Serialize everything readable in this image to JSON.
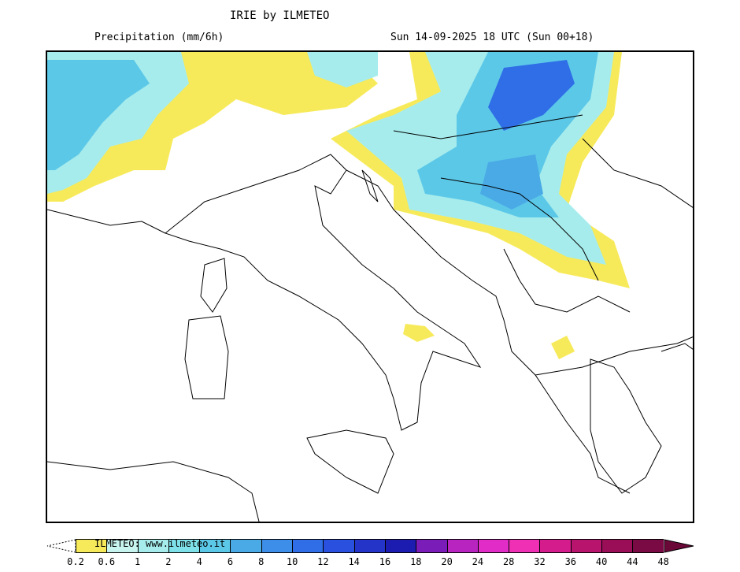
{
  "header": {
    "title": "IRIE by ILMETEO",
    "subtitle": "Precipitation (mm/6h)",
    "datetime": "Sun 14-09-2025 18 UTC (Sun 00+18)"
  },
  "legend": {
    "credit": "ILMETEO: www.ilmeteo.it",
    "ticks": [
      "0.2",
      "0.6",
      "1",
      "2",
      "4",
      "6",
      "8",
      "10",
      "12",
      "14",
      "16",
      "18",
      "20",
      "24",
      "28",
      "32",
      "36",
      "40",
      "44",
      "48"
    ],
    "colors": [
      "#f7ea5a",
      "#c8f4f0",
      "#a6ecec",
      "#7ee0e8",
      "#5cc8e8",
      "#4aaae6",
      "#3c8ee8",
      "#2f6ee6",
      "#2a50e0",
      "#2433c8",
      "#1c1cb0",
      "#7a1cb8",
      "#b824c0",
      "#e22cc8",
      "#f030b4",
      "#d41c8c",
      "#b8146e",
      "#9a0e58",
      "#7a0a44"
    ]
  },
  "map": {
    "region": "Italy and Balkans",
    "precip_colors": {
      "light": "#f7ea5a",
      "low": "#a6ecec",
      "mid": "#5cc8e8",
      "high": "#2f6ee6"
    }
  }
}
